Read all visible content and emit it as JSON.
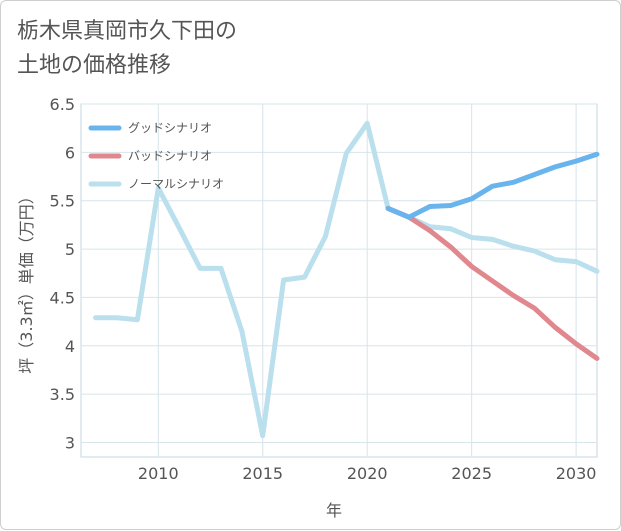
{
  "chart_data": {
    "type": "line",
    "title": [
      "栃木県真岡市久下田の",
      "土地の価格推移"
    ],
    "xlabel": "年",
    "ylabel": "坪（3.3㎡）単価（万円）",
    "xlim": [
      2006.3,
      2031.0
    ],
    "ylim": [
      2.85,
      6.5
    ],
    "xticks": [
      2010,
      2015,
      2020,
      2025,
      2030
    ],
    "yticks": [
      3,
      3.5,
      4,
      4.5,
      5,
      5.5,
      6,
      6.5
    ],
    "ytick_labels": [
      "3",
      "3.5",
      "4",
      "4.5",
      "5",
      "5.5",
      "6",
      "6.5"
    ],
    "legend_position": "top-left",
    "series": [
      {
        "name": "グッドシナリオ",
        "color": "#6ab4ee",
        "x": [
          2021,
          2022,
          2023,
          2024,
          2025,
          2026,
          2027,
          2028,
          2029,
          2030,
          2031
        ],
        "values": [
          5.42,
          5.33,
          5.44,
          5.45,
          5.52,
          5.65,
          5.69,
          5.77,
          5.85,
          5.91,
          5.98
        ]
      },
      {
        "name": "バッドシナリオ",
        "color": "#e0888e",
        "x": [
          2021,
          2022,
          2023,
          2024,
          2025,
          2026,
          2027,
          2028,
          2029,
          2030,
          2031
        ],
        "values": [
          5.42,
          5.33,
          5.19,
          5.02,
          4.82,
          4.67,
          4.52,
          4.39,
          4.19,
          4.02,
          3.87
        ]
      },
      {
        "name": "ノーマルシナリオ",
        "color": "#badfed",
        "x": [
          2007,
          2008,
          2009,
          2010,
          2011,
          2012,
          2013,
          2014,
          2015,
          2016,
          2017,
          2018,
          2019,
          2020,
          2021,
          2022,
          2023,
          2024,
          2025,
          2026,
          2027,
          2028,
          2029,
          2030,
          2031
        ],
        "values": [
          4.29,
          4.29,
          4.27,
          5.63,
          5.22,
          4.8,
          4.8,
          4.15,
          3.07,
          4.68,
          4.71,
          5.13,
          5.99,
          6.3,
          5.42,
          5.33,
          5.23,
          5.21,
          5.12,
          5.1,
          5.03,
          4.98,
          4.89,
          4.87,
          4.77
        ]
      }
    ]
  }
}
